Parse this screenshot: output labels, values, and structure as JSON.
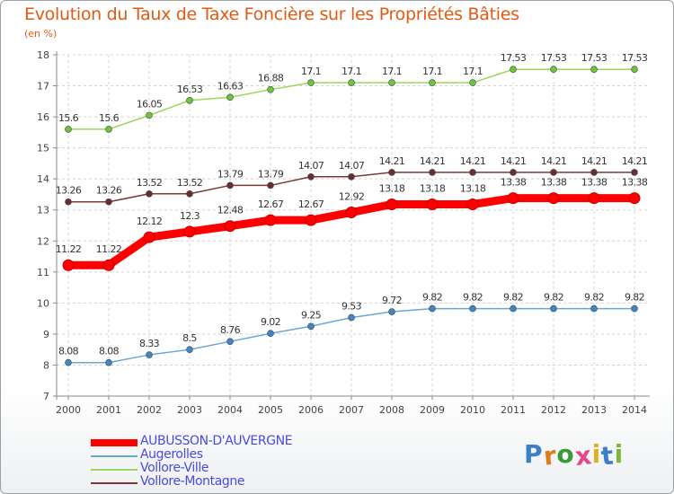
{
  "title": "Evolution du Taux de Taxe Foncière sur les Propriétés Bâties",
  "subtitle": "(en %)",
  "logo_text": "Proxiti",
  "chart_data": {
    "type": "line",
    "title": "Evolution du Taux de Taxe Foncière sur les Propriétés Bâties",
    "ylabel": "(en %)",
    "xlabel": "",
    "x": [
      "2000",
      "2001",
      "2002",
      "2003",
      "2004",
      "2005",
      "2006",
      "2007",
      "2008",
      "2009",
      "2010",
      "2011",
      "2012",
      "2013",
      "2014"
    ],
    "ylim": [
      7,
      18
    ],
    "yticks": [
      "7",
      "8",
      "9",
      "10",
      "11",
      "12",
      "13",
      "14",
      "15",
      "16",
      "17",
      "18"
    ],
    "legend_position": "bottom-left",
    "series": [
      {
        "name": "AUBUSSON-D'AUVERGNE",
        "color": "#ff0000",
        "emphasis": true,
        "values": [
          11.22,
          11.22,
          12.12,
          12.3,
          12.48,
          12.67,
          12.67,
          12.92,
          13.18,
          13.18,
          13.18,
          13.38,
          13.38,
          13.38,
          13.38
        ],
        "labels": [
          "11.22",
          "11.22",
          "12.12",
          "12.3",
          "12.48",
          "12.67",
          "12.67",
          "12.92",
          "13.18",
          "13.18",
          "13.18",
          "13.38",
          "13.38",
          "13.38",
          "13.38"
        ]
      },
      {
        "name": "Augerolles",
        "color": "#6aa6d6",
        "marker": "#3f86c6",
        "values": [
          8.08,
          8.08,
          8.33,
          8.5,
          8.76,
          9.02,
          9.25,
          9.53,
          9.72,
          9.82,
          9.82,
          9.82,
          9.82,
          9.82,
          9.82
        ],
        "labels": [
          "8.08",
          "8.08",
          "8.33",
          "8.5",
          "8.76",
          "9.02",
          "9.25",
          "9.53",
          "9.72",
          "9.82",
          "9.82",
          "9.82",
          "9.82",
          "9.82",
          "9.82"
        ]
      },
      {
        "name": "Vollore-Ville",
        "color": "#9cd65e",
        "marker": "#6ec43a",
        "values": [
          15.6,
          15.6,
          16.05,
          16.53,
          16.63,
          16.88,
          17.1,
          17.1,
          17.1,
          17.1,
          17.1,
          17.53,
          17.53,
          17.53,
          17.53
        ],
        "labels": [
          "15.6",
          "15.6",
          "16.05",
          "16.53",
          "16.63",
          "16.88",
          "17.1",
          "17.1",
          "17.1",
          "17.1",
          "17.1",
          "17.53",
          "17.53",
          "17.53",
          "17.53"
        ]
      },
      {
        "name": "Vollore-Montagne",
        "color": "#7a3a3a",
        "marker": "#6b2e2e",
        "values": [
          13.26,
          13.26,
          13.52,
          13.52,
          13.79,
          13.79,
          14.07,
          14.07,
          14.21,
          14.21,
          14.21,
          14.21,
          14.21,
          14.21,
          14.21
        ],
        "labels": [
          "13.26",
          "13.26",
          "13.52",
          "13.52",
          "13.79",
          "13.79",
          "14.07",
          "14.07",
          "14.21",
          "14.21",
          "14.21",
          "14.21",
          "14.21",
          "14.21",
          "14.21"
        ]
      }
    ]
  }
}
